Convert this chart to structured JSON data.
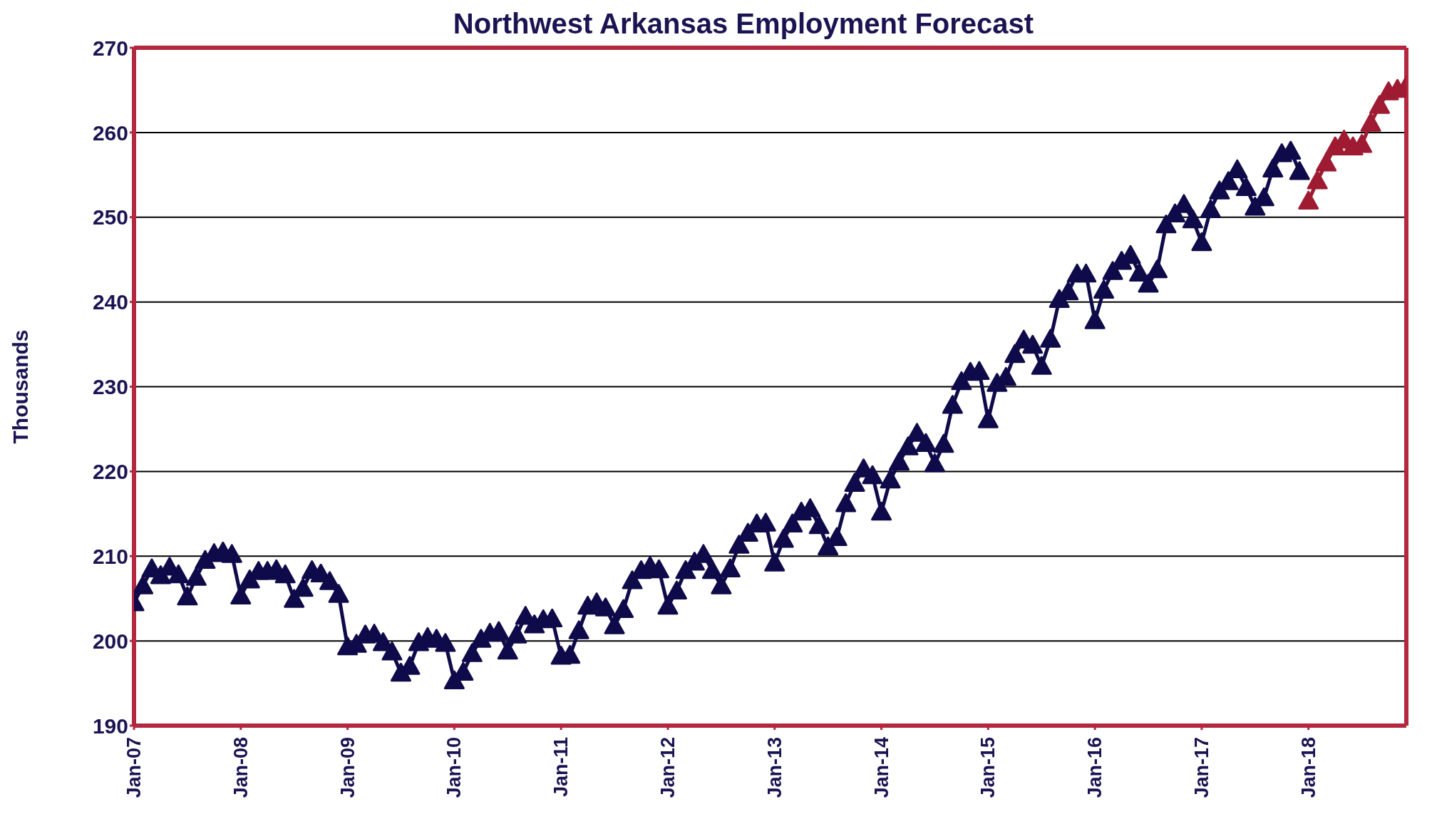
{
  "chart_data": {
    "type": "line",
    "title": "Northwest Arkansas Employment Forecast",
    "ylabel": "Thousands",
    "categories": [
      "Jan-07",
      null,
      null,
      null,
      null,
      null,
      null,
      null,
      null,
      null,
      null,
      null,
      "Jan-08",
      null,
      null,
      null,
      null,
      null,
      null,
      null,
      null,
      null,
      null,
      null,
      "Jan-09",
      null,
      null,
      null,
      null,
      null,
      null,
      null,
      null,
      null,
      null,
      null,
      "Jan-10",
      null,
      null,
      null,
      null,
      null,
      null,
      null,
      null,
      null,
      null,
      null,
      "Jan-11",
      null,
      null,
      null,
      null,
      null,
      null,
      null,
      null,
      null,
      null,
      null,
      "Jan-12",
      null,
      null,
      null,
      null,
      null,
      null,
      null,
      null,
      null,
      null,
      null,
      "Jan-13",
      null,
      null,
      null,
      null,
      null,
      null,
      null,
      null,
      null,
      null,
      null,
      "Jan-14",
      null,
      null,
      null,
      null,
      null,
      null,
      null,
      null,
      null,
      null,
      null,
      "Jan-15",
      null,
      null,
      null,
      null,
      null,
      null,
      null,
      null,
      null,
      null,
      null,
      "Jan-16",
      null,
      null,
      null,
      null,
      null,
      null,
      null,
      null,
      null,
      null,
      null,
      "Jan-17",
      null,
      null,
      null,
      null,
      null,
      null,
      null,
      null,
      null,
      null,
      null,
      "Jan-18",
      null,
      null,
      null,
      null,
      null,
      null,
      null,
      null,
      null,
      null,
      null
    ],
    "series": [
      {
        "color": "#0f0a4a",
        "values": [
          204.5,
          206.5,
          208.5,
          207.7,
          208.7,
          207.8,
          205.2,
          207.5,
          209.5,
          210.3,
          210.5,
          210.2,
          205.3,
          207.2,
          208.2,
          208.2,
          208.4,
          207.8,
          204.9,
          206.2,
          208.3,
          207.9,
          207,
          205.5,
          199.3,
          199.6,
          200.7,
          200.8,
          199.8,
          198.7,
          196.2,
          197,
          199.8,
          200.4,
          200.2,
          199.7,
          195.3,
          196.3,
          198.5,
          200.2,
          200.9,
          201.1,
          198.8,
          200.7,
          202.9,
          201.9,
          202.5,
          202.6,
          198.2,
          198.3,
          201.2,
          204.1,
          204.5,
          203.9,
          201.8,
          203.7,
          207.1,
          208.3,
          208.8,
          208.4,
          204.1,
          205.9,
          208.3,
          209.3,
          210.2,
          208.3,
          206.5,
          208.5,
          211.3,
          212.7,
          213.8,
          213.9,
          209.2,
          212,
          213.8,
          215.2,
          215.6,
          213.6,
          211.1,
          212.2,
          216.2,
          218.6,
          220.3,
          219.5,
          215.2,
          219,
          221.1,
          222.9,
          224.5,
          223.3,
          220.9,
          223.2,
          227.8,
          230.6,
          231.7,
          231.8,
          226.1,
          230.4,
          231.1,
          233.8,
          235.5,
          234.9,
          232.4,
          235.6,
          240.3,
          241.2,
          243.3,
          243.3,
          237.8,
          241.4,
          243.6,
          244.8,
          245.5,
          243.4,
          242.1,
          243.8,
          249.1,
          250.4,
          251.5,
          249.7,
          247,
          250.9,
          253.1,
          254.2,
          255.6,
          253.5,
          251.2,
          252.3,
          255.7,
          257.5,
          257.8,
          255.4,
          null,
          null,
          null,
          null,
          null,
          null,
          null,
          null,
          null,
          null,
          null,
          null
        ]
      },
      {
        "color": "#9e1b32",
        "values": [
          null,
          null,
          null,
          null,
          null,
          null,
          null,
          null,
          null,
          null,
          null,
          null,
          null,
          null,
          null,
          null,
          null,
          null,
          null,
          null,
          null,
          null,
          null,
          null,
          null,
          null,
          null,
          null,
          null,
          null,
          null,
          null,
          null,
          null,
          null,
          null,
          null,
          null,
          null,
          null,
          null,
          null,
          null,
          null,
          null,
          null,
          null,
          null,
          null,
          null,
          null,
          null,
          null,
          null,
          null,
          null,
          null,
          null,
          null,
          null,
          null,
          null,
          null,
          null,
          null,
          null,
          null,
          null,
          null,
          null,
          null,
          null,
          null,
          null,
          null,
          null,
          null,
          null,
          null,
          null,
          null,
          null,
          null,
          null,
          null,
          null,
          null,
          null,
          null,
          null,
          null,
          null,
          null,
          null,
          null,
          null,
          null,
          null,
          null,
          null,
          null,
          null,
          null,
          null,
          null,
          null,
          null,
          null,
          null,
          null,
          null,
          null,
          null,
          null,
          null,
          null,
          null,
          null,
          null,
          null,
          null,
          null,
          null,
          null,
          null,
          null,
          null,
          null,
          null,
          null,
          null,
          null,
          251.9,
          254.3,
          256.4,
          258.3,
          259.1,
          258.3,
          258.6,
          261.1,
          263.2,
          264.8,
          265.1,
          265.5
        ]
      }
    ],
    "ylim": [
      190,
      270
    ],
    "yticks": [
      190,
      200,
      210,
      220,
      230,
      240,
      250,
      260,
      270
    ],
    "grid": "y",
    "legend": false,
    "marker": "triangle",
    "line_style": "solid"
  }
}
